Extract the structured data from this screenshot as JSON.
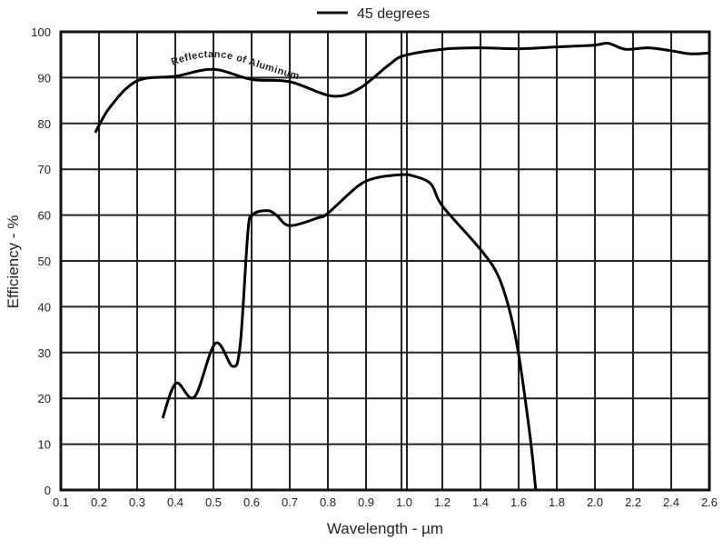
{
  "chart_data": {
    "type": "line",
    "title": "",
    "xlabel": "Wavelength - µm",
    "ylabel": "Efficiency - %",
    "ylim": [
      0,
      100
    ],
    "x_ticks": [
      "0.1",
      "0.2",
      "0.3",
      "0.4",
      "0.5",
      "0.6",
      "0.7",
      "0.8",
      "0.9",
      "1.0",
      "1.2",
      "1.4",
      "1.6",
      "1.8",
      "2.0",
      "2.2",
      "2.4",
      "2.6"
    ],
    "y_ticks": [
      "0",
      "10",
      "20",
      "30",
      "40",
      "50",
      "60",
      "70",
      "80",
      "90",
      "100"
    ],
    "x_scale_note": "0.1 steps up to 1.0, 0.2 steps from 1.0 to 2.6",
    "grid": true,
    "legend": {
      "position": "top-center",
      "entries": [
        "45 degrees"
      ]
    },
    "annotations": [
      "Reflectance of Aluminum"
    ],
    "series": [
      {
        "name": "45 degrees",
        "x": [
          0.367,
          0.402,
          0.45,
          0.505,
          0.55,
          0.57,
          0.59,
          0.602,
          0.64,
          0.665,
          0.7,
          0.774,
          0.8,
          0.88,
          0.93,
          0.99,
          1.043,
          1.14,
          1.2,
          1.4,
          1.49,
          1.55,
          1.6,
          1.66,
          1.69
        ],
        "y": [
          15.7,
          23.3,
          20.3,
          32,
          27,
          31.6,
          56,
          60,
          61,
          60,
          57.7,
          59.4,
          60.4,
          66.4,
          68.2,
          68.8,
          68.6,
          66.8,
          62,
          52.5,
          47,
          39.6,
          29.6,
          11.7,
          0
        ]
      },
      {
        "name": "Reflectance of Aluminum",
        "x": [
          0.19,
          0.23,
          0.3,
          0.4,
          0.5,
          0.6,
          0.7,
          0.81,
          0.88,
          0.96,
          1.0,
          1.2,
          1.4,
          1.6,
          1.8,
          2.0,
          2.07,
          2.16,
          2.28,
          2.41,
          2.5,
          2.6
        ],
        "y": [
          78,
          83.7,
          89.3,
          90.3,
          91.8,
          89.6,
          89.1,
          86,
          87.5,
          92.8,
          94.8,
          96.2,
          96.5,
          96.3,
          96.7,
          97.1,
          97.5,
          96.2,
          96.5,
          95.8,
          95.2,
          95.4
        ]
      }
    ]
  }
}
